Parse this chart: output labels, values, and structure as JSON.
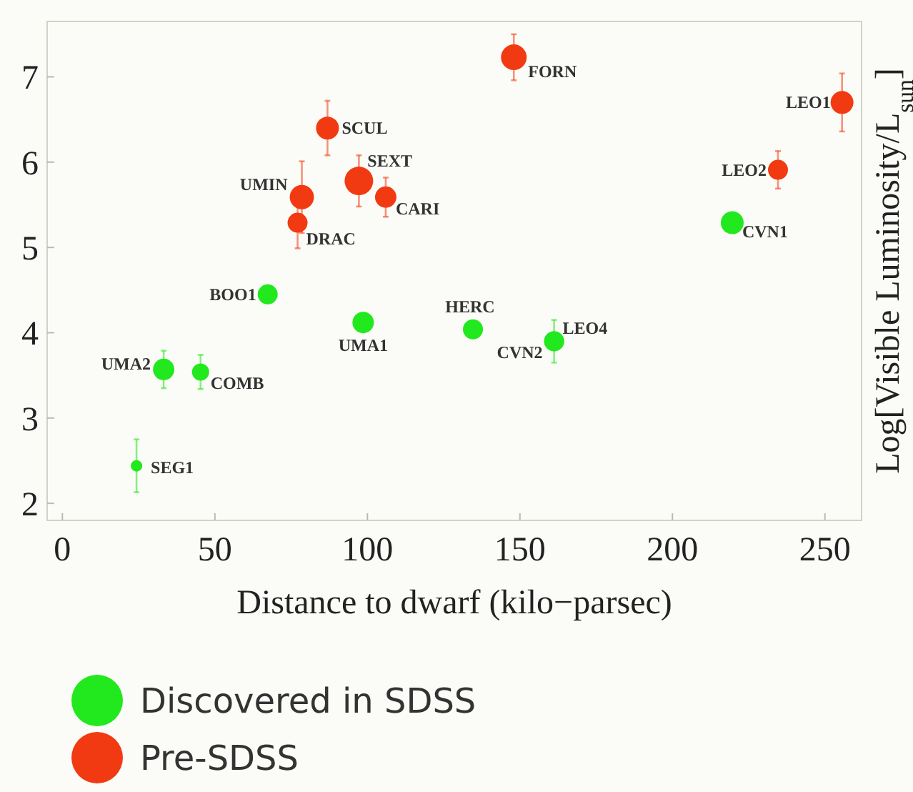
{
  "chart_data": {
    "type": "bubble",
    "xlabel": "Distance to dwarf (kilo−parsec)",
    "ylabel": "Log[Visible Luminosity/L$_{sun}$]",
    "xlim": [
      -5,
      262
    ],
    "xticks": [
      0,
      50,
      100,
      150,
      200,
      250
    ],
    "ylim": [
      1.8,
      7.65
    ],
    "yticks": [
      2,
      3,
      4,
      5,
      6,
      7
    ],
    "legend": "bottom",
    "grid": false,
    "series": [
      {
        "name": "Discovered in SDSS",
        "color": "#22e81e",
        "x": [
          24.3,
          33.2,
          45.3,
          67.3,
          98.6,
          134.6,
          161.2,
          161.2,
          219.6
        ],
        "values": [
          2.44,
          3.57,
          3.54,
          4.45,
          4.12,
          4.04,
          3.9,
          3.9,
          5.29
        ],
        "errors": [
          0.31,
          0.22,
          0.2,
          null,
          null,
          0.1,
          0.25,
          null,
          null
        ],
        "sizes": [
          0.16,
          0.56,
          0.36,
          0.49,
          0.56,
          0.49,
          0.49,
          0.49,
          0.64
        ]
      },
      {
        "name": "Pre-SDSS",
        "color": "#f23a12",
        "x": [
          86.9,
          78.5,
          77.1,
          97.2,
          106,
          148,
          234.6,
          255.6
        ],
        "values": [
          6.4,
          5.59,
          5.29,
          5.78,
          5.59,
          7.23,
          5.91,
          6.7
        ],
        "errors": [
          0.32,
          0.42,
          0.3,
          0.3,
          0.23,
          0.27,
          0.22,
          0.34
        ],
        "sizes": [
          0.64,
          0.72,
          0.49,
          1,
          0.56,
          0.81,
          0.49,
          0.64
        ]
      }
    ],
    "annotations": [
      {
        "text": "SEG1",
        "x": 24.3,
        "y": 2.44
      },
      {
        "text": "UMA2",
        "x": 33.2,
        "y": 3.57
      },
      {
        "text": "COMB",
        "x": 45.3,
        "y": 3.54
      },
      {
        "text": "BOO1",
        "x": 67.3,
        "y": 4.45
      },
      {
        "text": "UMA1",
        "x": 98.6,
        "y": 4.12
      },
      {
        "text": "HERC",
        "x": 134.6,
        "y": 4.04
      },
      {
        "text": "CVN2",
        "x": 161.2,
        "y": 3.9
      },
      {
        "text": "LEO4",
        "x": 161.2,
        "y": 3.9
      },
      {
        "text": "CVN1",
        "x": 219.6,
        "y": 5.29
      },
      {
        "text": "SCUL",
        "x": 86.9,
        "y": 6.4
      },
      {
        "text": "UMIN",
        "x": 78.5,
        "y": 5.59
      },
      {
        "text": "DRAC",
        "x": 77.1,
        "y": 5.29
      },
      {
        "text": "SEXT",
        "x": 97.2,
        "y": 5.78
      },
      {
        "text": "CARI",
        "x": 106,
        "y": 5.59
      },
      {
        "text": "FORN",
        "x": 148,
        "y": 7.23
      },
      {
        "text": "LEO2",
        "x": 234.6,
        "y": 5.91
      },
      {
        "text": "LEO1",
        "x": 255.6,
        "y": 6.7
      }
    ]
  }
}
